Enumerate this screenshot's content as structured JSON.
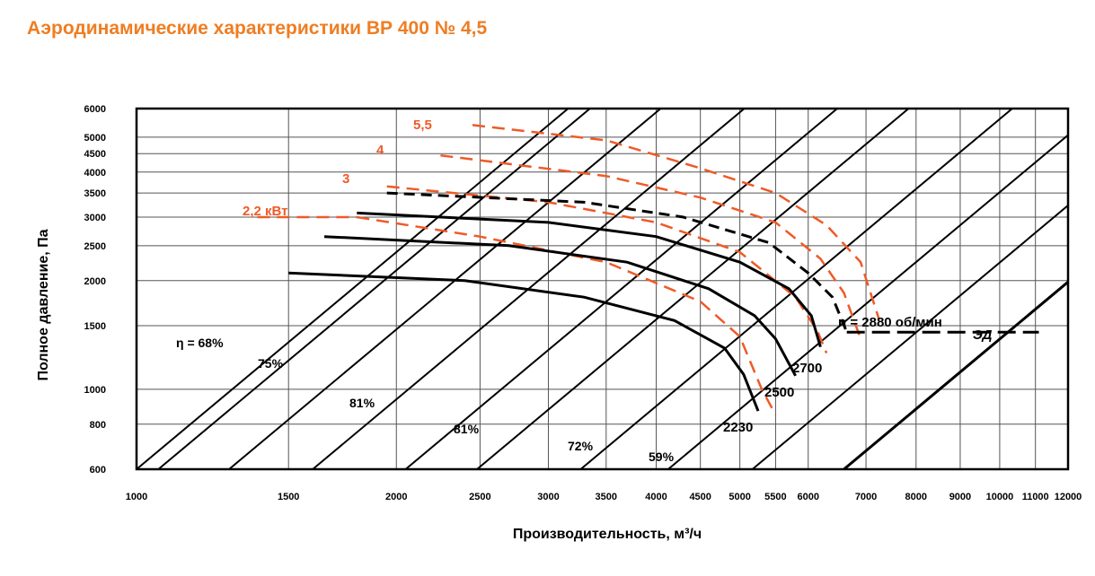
{
  "title": "Аэродинамические характеристики ВР 400 № 4,5",
  "chart_data": {
    "type": "line",
    "xscale": "log",
    "yscale": "log",
    "xlabel": "Производительность, м³/ч",
    "ylabel": "Полное давление, Па",
    "xlim": [
      1000,
      12000
    ],
    "ylim": [
      600,
      6000
    ],
    "x_ticks": [
      1000,
      1500,
      2000,
      2500,
      3000,
      3500,
      4000,
      4500,
      5000,
      5500,
      6000,
      7000,
      8000,
      9000,
      10000,
      11000,
      12000
    ],
    "y_ticks": [
      600,
      800,
      1000,
      1500,
      2000,
      2500,
      3000,
      3500,
      4000,
      4500,
      5000,
      6000
    ],
    "colors": {
      "black": "#000000",
      "orange": "#ef5a28",
      "grid": "#555555"
    },
    "speed_curves": [
      {
        "name": "2230",
        "points": [
          [
            1500,
            2100
          ],
          [
            2400,
            2000
          ],
          [
            3300,
            1800
          ],
          [
            4200,
            1550
          ],
          [
            4800,
            1300
          ],
          [
            5050,
            1100
          ],
          [
            5250,
            870
          ]
        ]
      },
      {
        "name": "2500",
        "points": [
          [
            1650,
            2650
          ],
          [
            2700,
            2500
          ],
          [
            3700,
            2250
          ],
          [
            4600,
            1900
          ],
          [
            5200,
            1600
          ],
          [
            5500,
            1380
          ],
          [
            5800,
            1090
          ]
        ]
      },
      {
        "name": "2700",
        "points": [
          [
            1800,
            3080
          ],
          [
            3000,
            2900
          ],
          [
            4000,
            2650
          ],
          [
            5000,
            2250
          ],
          [
            5700,
            1900
          ],
          [
            6050,
            1600
          ],
          [
            6200,
            1310
          ]
        ]
      }
    ],
    "ed_curve": {
      "name": "n = 2880 об/мин",
      "points": [
        [
          1950,
          3500
        ],
        [
          3300,
          3300
        ],
        [
          4300,
          3000
        ],
        [
          5400,
          2550
        ],
        [
          6000,
          2100
        ],
        [
          6400,
          1800
        ],
        [
          6650,
          1440
        ]
      ],
      "tail": [
        [
          6650,
          1440
        ],
        [
          11100,
          1440
        ]
      ],
      "label": "ЭД"
    },
    "power_curves": [
      {
        "name": "2,2 кВт",
        "points": [
          [
            1800,
            3000
          ],
          [
            2500,
            2650
          ],
          [
            3500,
            2250
          ],
          [
            4500,
            1750
          ],
          [
            5000,
            1400
          ],
          [
            5300,
            1000
          ],
          [
            5500,
            850
          ]
        ],
        "lead": [
          [
            1380,
            3000
          ],
          [
            1800,
            3000
          ]
        ]
      },
      {
        "name": "3",
        "points": [
          [
            1950,
            3650
          ],
          [
            3000,
            3300
          ],
          [
            4000,
            2900
          ],
          [
            5000,
            2400
          ],
          [
            5800,
            1800
          ],
          [
            6150,
            1450
          ],
          [
            6300,
            1260
          ]
        ]
      },
      {
        "name": "4",
        "points": [
          [
            2250,
            4450
          ],
          [
            3500,
            3900
          ],
          [
            4500,
            3400
          ],
          [
            5500,
            2900
          ],
          [
            6200,
            2300
          ],
          [
            6600,
            1850
          ],
          [
            6900,
            1380
          ]
        ]
      },
      {
        "name": "5,5",
        "points": [
          [
            2450,
            5400
          ],
          [
            3500,
            4900
          ],
          [
            4500,
            4100
          ],
          [
            5500,
            3500
          ],
          [
            6300,
            2850
          ],
          [
            6900,
            2250
          ],
          [
            7250,
            1560
          ]
        ]
      }
    ],
    "efficiency_lines": [
      {
        "name": "η = 68%"
      },
      {
        "name": "75%"
      },
      {
        "name": "81%"
      },
      {
        "name": "81%"
      },
      {
        "name": "72%"
      },
      {
        "name": "59%"
      }
    ],
    "speed_labels": [
      "2230",
      "2500",
      "2700"
    ]
  }
}
